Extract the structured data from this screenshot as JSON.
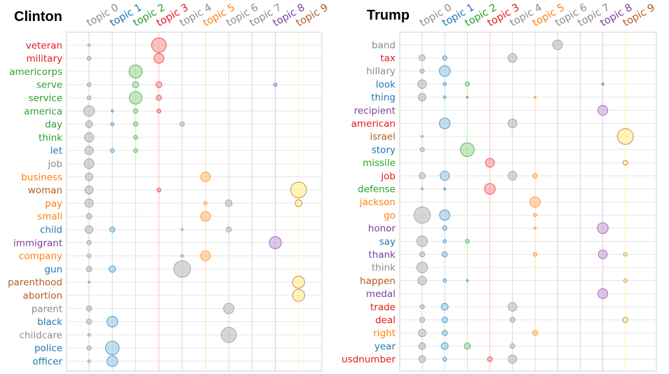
{
  "colors": {
    "gray": "#8c8c8c",
    "blue": "#1f77b4",
    "green": "#2ca02c",
    "red": "#d62728",
    "orange": "#ff7f0e",
    "purple": "#7b3fa0",
    "brown": "#b35a1f",
    "gold": "#e8e800"
  },
  "topics": [
    {
      "label": "topic 0",
      "color": "#8c8c8c",
      "fill": "#bdbdbd"
    },
    {
      "label": "topic 1",
      "color": "#1f77b4",
      "fill": "#9ecae1"
    },
    {
      "label": "topic 2",
      "color": "#2ca02c",
      "fill": "#a1d99b"
    },
    {
      "label": "topic 3",
      "color": "#e31a1c",
      "fill": "#fb9a99"
    },
    {
      "label": "topic 4",
      "color": "#8c8c8c",
      "fill": "#bdbdbd"
    },
    {
      "label": "topic 5",
      "color": "#ff7f0e",
      "fill": "#fdc07a"
    },
    {
      "label": "topic 6",
      "color": "#8c8c8c",
      "fill": "#bdbdbd"
    },
    {
      "label": "topic 7",
      "color": "#8c8c8c",
      "fill": "#bdbdbd"
    },
    {
      "label": "topic 8",
      "color": "#7b3fa0",
      "fill": "#c9a3d9"
    },
    {
      "label": "topic 9",
      "color": "#b35a1f",
      "fill": "#ffef8a"
    }
  ],
  "chart_data": [
    {
      "type": "scatter",
      "title": "Clinton",
      "note": "bubble chart: word (row) vs topic (column); value = relative weight 0-1",
      "words": [
        {
          "word": "veteran",
          "color": "#e31a1c",
          "points": [
            [
              0,
              0.02
            ],
            [
              3,
              0.55
            ]
          ]
        },
        {
          "word": "military",
          "color": "#e31a1c",
          "points": [
            [
              0,
              0.04
            ],
            [
              3,
              0.25
            ]
          ]
        },
        {
          "word": "americorps",
          "color": "#2ca02c",
          "points": [
            [
              2,
              0.45
            ]
          ]
        },
        {
          "word": "serve",
          "color": "#2ca02c",
          "points": [
            [
              0,
              0.04
            ],
            [
              2,
              0.1
            ],
            [
              3,
              0.09
            ],
            [
              8,
              0.03
            ]
          ]
        },
        {
          "word": "service",
          "color": "#2ca02c",
          "points": [
            [
              0,
              0.04
            ],
            [
              2,
              0.42
            ],
            [
              3,
              0.07
            ]
          ]
        },
        {
          "word": "america",
          "color": "#2ca02c",
          "points": [
            [
              0,
              0.3
            ],
            [
              1,
              0.01
            ],
            [
              2,
              0.05
            ],
            [
              3,
              0.04
            ]
          ]
        },
        {
          "word": "day",
          "color": "#2ca02c",
          "points": [
            [
              0,
              0.12
            ],
            [
              1,
              0.03
            ],
            [
              2,
              0.05
            ],
            [
              4,
              0.05
            ]
          ]
        },
        {
          "word": "think",
          "color": "#2ca02c",
          "points": [
            [
              0,
              0.22
            ],
            [
              2,
              0.04
            ]
          ]
        },
        {
          "word": "let",
          "color": "#1f77b4",
          "points": [
            [
              0,
              0.18
            ],
            [
              1,
              0.04
            ],
            [
              2,
              0.04
            ]
          ]
        },
        {
          "word": "job",
          "color": "#8c8c8c",
          "points": [
            [
              0,
              0.25
            ]
          ]
        },
        {
          "word": "business",
          "color": "#ff7f0e",
          "points": [
            [
              0,
              0.15
            ],
            [
              5,
              0.25
            ]
          ]
        },
        {
          "word": "woman",
          "color": "#b35a1f",
          "points": [
            [
              0,
              0.17
            ],
            [
              3,
              0.04
            ],
            [
              9,
              0.65
            ]
          ]
        },
        {
          "word": "pay",
          "color": "#ff7f0e",
          "points": [
            [
              0,
              0.18
            ],
            [
              5,
              0.03
            ],
            [
              6,
              0.12
            ],
            [
              9,
              0.12
            ]
          ]
        },
        {
          "word": "small",
          "color": "#ff7f0e",
          "points": [
            [
              0,
              0.08
            ],
            [
              5,
              0.25
            ]
          ]
        },
        {
          "word": "child",
          "color": "#1f77b4",
          "points": [
            [
              0,
              0.16
            ],
            [
              1,
              0.07
            ],
            [
              4,
              0.01
            ],
            [
              6,
              0.07
            ]
          ]
        },
        {
          "word": "immigrant",
          "color": "#7b3fa0",
          "points": [
            [
              0,
              0.05
            ],
            [
              8,
              0.38
            ]
          ]
        },
        {
          "word": "company",
          "color": "#ff7f0e",
          "points": [
            [
              0,
              0.04
            ],
            [
              4,
              0.02
            ],
            [
              5,
              0.25
            ]
          ]
        },
        {
          "word": "gun",
          "color": "#1f77b4",
          "points": [
            [
              0,
              0.08
            ],
            [
              1,
              0.11
            ],
            [
              4,
              0.72
            ]
          ]
        },
        {
          "word": "parenthood",
          "color": "#b35a1f",
          "points": [
            [
              0,
              0.01
            ],
            [
              9,
              0.38
            ]
          ]
        },
        {
          "word": "abortion",
          "color": "#b35a1f",
          "points": [
            [
              9,
              0.38
            ]
          ]
        },
        {
          "word": "parent",
          "color": "#8c8c8c",
          "points": [
            [
              0,
              0.07
            ],
            [
              6,
              0.28
            ]
          ]
        },
        {
          "word": "black",
          "color": "#1f77b4",
          "points": [
            [
              0,
              0.07
            ],
            [
              1,
              0.3
            ]
          ]
        },
        {
          "word": "childcare",
          "color": "#8c8c8c",
          "points": [
            [
              0,
              0.02
            ],
            [
              6,
              0.6
            ]
          ]
        },
        {
          "word": "police",
          "color": "#1f77b4",
          "points": [
            [
              0,
              0.05
            ],
            [
              1,
              0.48
            ]
          ]
        },
        {
          "word": "officer",
          "color": "#1f77b4",
          "points": [
            [
              0,
              0.02
            ],
            [
              1,
              0.3
            ]
          ]
        }
      ]
    },
    {
      "type": "scatter",
      "title": "Trump",
      "note": "bubble chart: word (row) vs topic (column); value = relative weight 0-1",
      "words": [
        {
          "word": "band",
          "color": "#8c8c8c",
          "points": [
            [
              6,
              0.25
            ]
          ]
        },
        {
          "word": "tax",
          "color": "#e31a1c",
          "points": [
            [
              0,
              0.1
            ],
            [
              1,
              0.05
            ],
            [
              4,
              0.2
            ]
          ]
        },
        {
          "word": "hillary",
          "color": "#8c8c8c",
          "points": [
            [
              0,
              0.05
            ],
            [
              1,
              0.3
            ]
          ]
        },
        {
          "word": "look",
          "color": "#1f77b4",
          "points": [
            [
              0,
              0.2
            ],
            [
              1,
              0.03
            ],
            [
              2,
              0.05
            ],
            [
              8,
              0.01
            ]
          ]
        },
        {
          "word": "thing",
          "color": "#1f77b4",
          "points": [
            [
              0,
              0.15
            ],
            [
              1,
              0.02
            ],
            [
              2,
              0.01
            ],
            [
              5,
              0.01
            ]
          ]
        },
        {
          "word": "recipient",
          "color": "#7b3fa0",
          "points": [
            [
              8,
              0.25
            ]
          ]
        },
        {
          "word": "american",
          "color": "#e31a1c",
          "points": [
            [
              1,
              0.3
            ],
            [
              4,
              0.2
            ]
          ]
        },
        {
          "word": "israel",
          "color": "#b35a1f",
          "points": [
            [
              0,
              0.01
            ],
            [
              9,
              0.65
            ]
          ]
        },
        {
          "word": "story",
          "color": "#1f77b4",
          "points": [
            [
              0,
              0.05
            ],
            [
              2,
              0.5
            ]
          ]
        },
        {
          "word": "missile",
          "color": "#2ca02c",
          "points": [
            [
              3,
              0.2
            ],
            [
              9,
              0.06
            ]
          ]
        },
        {
          "word": "job",
          "color": "#e31a1c",
          "points": [
            [
              0,
              0.1
            ],
            [
              1,
              0.22
            ],
            [
              4,
              0.2
            ],
            [
              5,
              0.06
            ]
          ]
        },
        {
          "word": "defense",
          "color": "#2ca02c",
          "points": [
            [
              0,
              0.01
            ],
            [
              1,
              0.01
            ],
            [
              3,
              0.3
            ]
          ]
        },
        {
          "word": "jackson",
          "color": "#ff7f0e",
          "points": [
            [
              5,
              0.28
            ]
          ]
        },
        {
          "word": "go",
          "color": "#ff7f0e",
          "points": [
            [
              0,
              0.7
            ],
            [
              1,
              0.28
            ],
            [
              5,
              0.03
            ]
          ]
        },
        {
          "word": "honor",
          "color": "#7b3fa0",
          "points": [
            [
              1,
              0.05
            ],
            [
              5,
              0.01
            ],
            [
              8,
              0.3
            ]
          ]
        },
        {
          "word": "say",
          "color": "#1f77b4",
          "points": [
            [
              0,
              0.3
            ],
            [
              1,
              0.03
            ],
            [
              2,
              0.04
            ]
          ]
        },
        {
          "word": "thank",
          "color": "#7b3fa0",
          "points": [
            [
              0,
              0.07
            ],
            [
              1,
              0.07
            ],
            [
              5,
              0.04
            ],
            [
              8,
              0.2
            ],
            [
              9,
              0.03
            ]
          ]
        },
        {
          "word": "think",
          "color": "#8c8c8c",
          "points": [
            [
              0,
              0.3
            ]
          ]
        },
        {
          "word": "happen",
          "color": "#b35a1f",
          "points": [
            [
              0,
              0.2
            ],
            [
              1,
              0.03
            ],
            [
              2,
              0.01
            ],
            [
              9,
              0.03
            ]
          ]
        },
        {
          "word": "medal",
          "color": "#7b3fa0",
          "points": [
            [
              8,
              0.25
            ]
          ]
        },
        {
          "word": "trade",
          "color": "#e31a1c",
          "points": [
            [
              0,
              0.05
            ],
            [
              1,
              0.12
            ],
            [
              4,
              0.2
            ]
          ]
        },
        {
          "word": "deal",
          "color": "#e31a1c",
          "points": [
            [
              0,
              0.07
            ],
            [
              1,
              0.08
            ],
            [
              4,
              0.07
            ],
            [
              9,
              0.07
            ]
          ]
        },
        {
          "word": "right",
          "color": "#ff7f0e",
          "points": [
            [
              0,
              0.15
            ],
            [
              1,
              0.07
            ],
            [
              5,
              0.07
            ]
          ]
        },
        {
          "word": "year",
          "color": "#1f77b4",
          "points": [
            [
              0,
              0.12
            ],
            [
              1,
              0.12
            ],
            [
              2,
              0.1
            ],
            [
              4,
              0.06
            ]
          ]
        },
        {
          "word": "usdnumber",
          "color": "#e31a1c",
          "points": [
            [
              0,
              0.12
            ],
            [
              1,
              0.04
            ],
            [
              3,
              0.06
            ],
            [
              4,
              0.18
            ]
          ]
        }
      ]
    }
  ]
}
